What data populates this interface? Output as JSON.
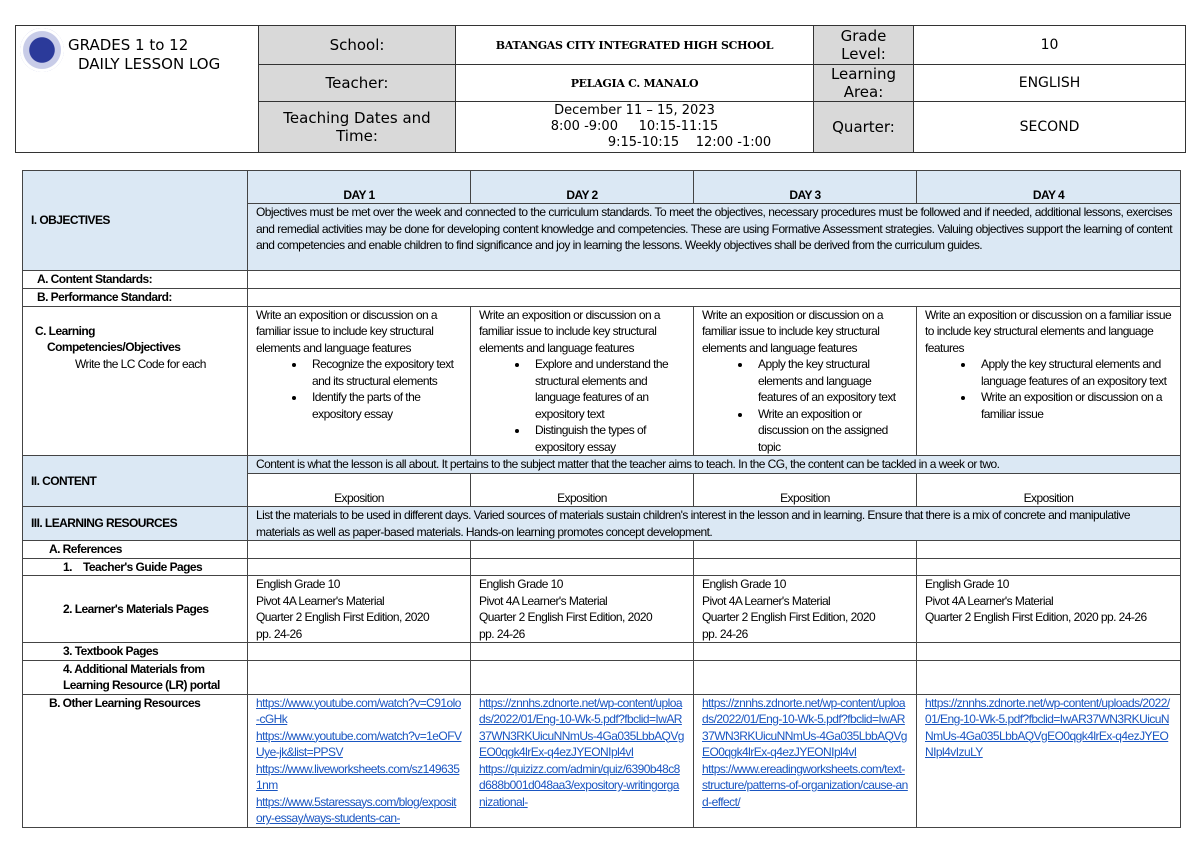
{
  "header": {
    "title_line1": "GRADES 1 to 12",
    "title_line2": "DAILY LESSON LOG",
    "school_label": "School:",
    "school": "BATANGAS CITY INTEGRATED HIGH SCHOOL",
    "grade_label": "Grade Level:",
    "grade": "10",
    "teacher_label": "Teacher:",
    "teacher": "PELAGIA C. MANALO",
    "area_label": "Learning Area:",
    "area": "ENGLISH",
    "dates_label": "Teaching Dates and Time:",
    "dates": "December 11 – 15, 2023",
    "time1": "8:00 -9:00     10:15-11:15",
    "time2": "9:15-10:15    12:00 -1:00",
    "quarter_label": "Quarter:",
    "quarter": "SECOND"
  },
  "days": [
    "DAY 1",
    "DAY 2",
    "DAY 3",
    "DAY 4"
  ],
  "objectives": {
    "label": "I. OBJECTIVES",
    "text": "Objectives must be met over the week and connected to the curriculum standards. To meet the objectives, necessary procedures must be followed and if needed, additional lessons, exercises and remedial activities may be done for developing content knowledge and competencies. These are using Formative Assessment strategies. Valuing objectives support the learning of content and competencies and enable children to find significance and joy in learning the lessons. Weekly objectives shall be derived from the curriculum guides.",
    "content_standards": "A. Content Standards:",
    "performance_standard": "B. Performance Standard:",
    "lc_label1": "C. Learning",
    "lc_label2": "Competencies/Objectives",
    "lc_label3": "Write the LC Code for each",
    "lc": [
      {
        "intro": "Write an exposition or discussion on a familiar issue to include key structural elements and language features",
        "bullets": [
          "Recognize the expository text and its structural elements",
          "Identify the parts of the expository essay"
        ]
      },
      {
        "intro": "Write an exposition or discussion on a familiar issue to include key structural elements and language features",
        "bullets": [
          "Explore and understand the structural elements and language features of an expository text",
          "Distinguish the types of expository essay"
        ]
      },
      {
        "intro": "Write an exposition or discussion on a familiar issue to include key structural elements and language features",
        "bullets": [
          "Apply the key structural elements and language features of an expository text",
          "Write an exposition or discussion on the assigned topic"
        ]
      },
      {
        "intro": "Write an exposition or discussion on a familiar issue to include key structural elements and language features",
        "bullets": [
          "Apply the key structural elements and language features of an expository text",
          "Write an exposition or discussion on a familiar issue"
        ]
      }
    ]
  },
  "content": {
    "label": "II. CONTENT",
    "text": "Content is what the lesson is all about. It pertains to the subject matter that the teacher aims to teach. In the CG, the content can be tackled in a week or two.",
    "topics": [
      "Exposition",
      "Exposition",
      "Exposition",
      "Exposition"
    ]
  },
  "resources": {
    "label": "III. LEARNING RESOURCES",
    "text": "List the materials to be used in different days. Varied sources of materials sustain children's interest in the lesson and in learning. Ensure that there is a mix of concrete and manipulative materials as well as paper-based materials. Hands-on learning promotes concept development.",
    "references": "A. References",
    "tg": "1.    Teacher's Guide Pages",
    "lm": "2. Learner's Materials Pages",
    "lm_values": [
      [
        "English Grade 10",
        "Pivot 4A Learner's Material",
        "Quarter 2 English First Edition, 2020",
        "pp. 24-26"
      ],
      [
        "English Grade 10",
        "Pivot 4A Learner's Material",
        "Quarter 2 English First Edition, 2020",
        "pp. 24-26"
      ],
      [
        "English Grade 10",
        "Pivot 4A Learner's Material",
        "Quarter 2 English First Edition, 2020",
        "pp. 24-26"
      ],
      [
        "English Grade 10",
        "Pivot 4A Learner's Material",
        "Quarter 2 English First Edition, 2020 pp. 24-26",
        ""
      ]
    ],
    "textbook": "3. Textbook Pages",
    "additional1": "4. Additional Materials from",
    "additional2": "Learning Resource (LR) portal",
    "other": "B. Other Learning Resources",
    "links": [
      [
        "https://www.youtube.com/watch?v=C91olo-cGHk",
        "https://www.youtube.com/watch?v=1eOFVUye-jk&list=PPSV",
        "https://www.liveworksheets.com/sz1496351nm",
        "https://www.5staressays.com/blog/expository-essay/ways-students-can-"
      ],
      [
        "https://znnhs.zdnorte.net/wp-content/uploads/2022/01/Eng-10-Wk-5.pdf?fbclid=IwAR37WN3RKUicuNNmUs-4Ga035LbbAQVgEO0qgk4lrEx-q4ezJYEONIpl4vI",
        "https://quizizz.com/admin/quiz/6390b48c8d688b001d048aa3/expository-writingorganizational-"
      ],
      [
        "https://znnhs.zdnorte.net/wp-content/uploads/2022/01/Eng-10-Wk-5.pdf?fbclid=IwAR37WN3RKUicuNNmUs-4Ga035LbbAQVgEO0qgk4lrEx-q4ezJYEONIpl4vI",
        "https://www.ereadingworksheets.com/text-structure/patterns-of-organization/cause-and-effect/"
      ],
      [
        "https://znnhs.zdnorte.net/wp-content/uploads/2022/01/Eng-10-Wk-5.pdf?fbclid=IwAR37WN3RKUicuNNmUs-4Ga035LbbAQVgEO0qgk4lrEx-q4ezJYEONIpl4vIzuLY"
      ]
    ]
  },
  "colors": {
    "section_bg": "#dbe8f4",
    "label_bg": "#d9d9d9",
    "link": "#1a56c2"
  }
}
